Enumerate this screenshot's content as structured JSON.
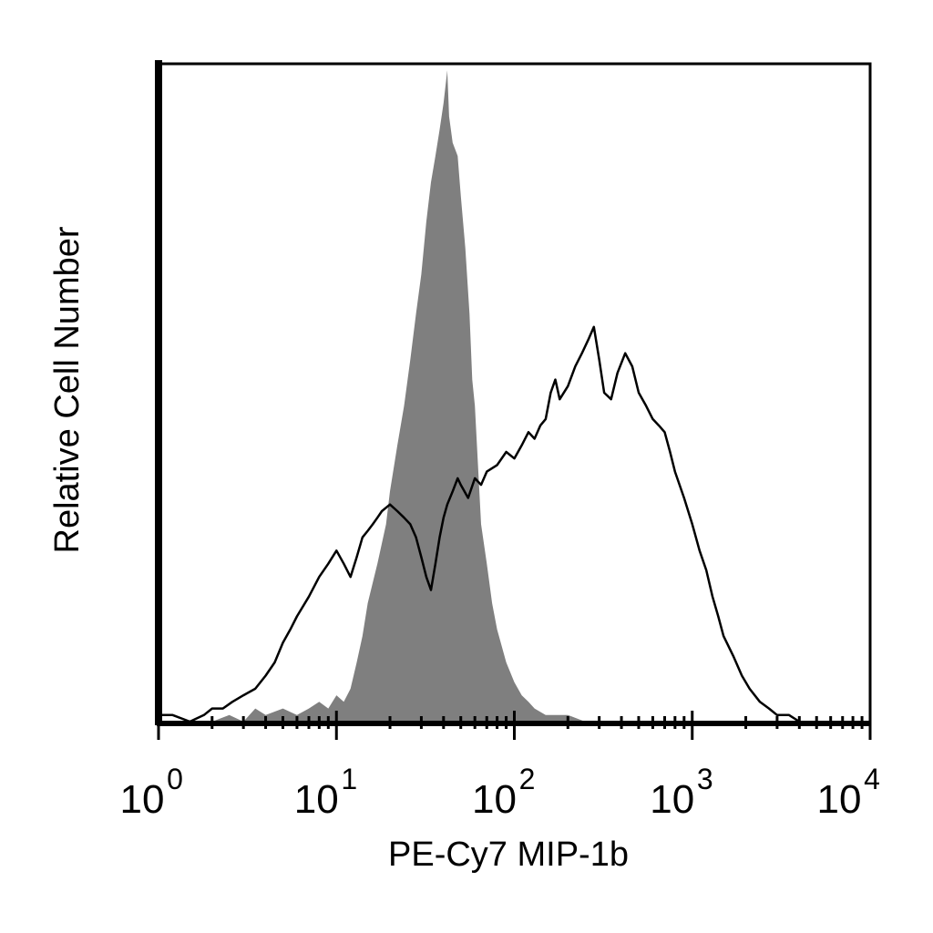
{
  "chart_data": {
    "type": "area",
    "xlabel": "PE-Cy7 MIP-1b",
    "ylabel": "Relative Cell Number",
    "x_scale": "log",
    "xlim": [
      1,
      10000
    ],
    "ylim": [
      0,
      100
    ],
    "x_ticks": [
      {
        "base": "10",
        "exp": "0",
        "value": 1
      },
      {
        "base": "10",
        "exp": "1",
        "value": 10
      },
      {
        "base": "10",
        "exp": "2",
        "value": 100
      },
      {
        "base": "10",
        "exp": "3",
        "value": 1000
      },
      {
        "base": "10",
        "exp": "4",
        "value": 10000
      }
    ],
    "grid": false,
    "legend": "none",
    "series": [
      {
        "style": "filled",
        "color": "#7f7f7f",
        "points": [
          [
            1.0,
            0
          ],
          [
            2.0,
            0
          ],
          [
            2.5,
            1
          ],
          [
            3.0,
            0
          ],
          [
            3.5,
            2
          ],
          [
            4.0,
            1
          ],
          [
            5.0,
            2
          ],
          [
            6.0,
            1
          ],
          [
            7.0,
            2
          ],
          [
            8.0,
            3
          ],
          [
            9.0,
            2
          ],
          [
            10.0,
            4
          ],
          [
            11.0,
            3
          ],
          [
            12.0,
            5
          ],
          [
            13.0,
            9
          ],
          [
            14.0,
            13
          ],
          [
            15.0,
            18
          ],
          [
            17.0,
            24
          ],
          [
            19.0,
            30
          ],
          [
            20.0,
            35
          ],
          [
            22.0,
            42
          ],
          [
            24.0,
            48
          ],
          [
            26.0,
            55
          ],
          [
            28.0,
            62
          ],
          [
            30.0,
            68
          ],
          [
            32.0,
            76
          ],
          [
            34.0,
            82
          ],
          [
            36.0,
            86
          ],
          [
            38.0,
            90
          ],
          [
            40.0,
            94
          ],
          [
            42.0,
            99
          ],
          [
            43.0,
            92
          ],
          [
            45.0,
            88
          ],
          [
            48.0,
            86
          ],
          [
            50.0,
            80
          ],
          [
            53.0,
            72
          ],
          [
            56.0,
            62
          ],
          [
            58.0,
            52
          ],
          [
            60.0,
            48
          ],
          [
            65.0,
            30
          ],
          [
            70.0,
            24
          ],
          [
            75.0,
            18
          ],
          [
            80.0,
            14
          ],
          [
            90.0,
            9
          ],
          [
            100.0,
            6
          ],
          [
            110.0,
            4
          ],
          [
            120.0,
            3
          ],
          [
            130.0,
            2
          ],
          [
            150.0,
            1
          ],
          [
            200.0,
            1
          ],
          [
            250.0,
            0
          ]
        ]
      },
      {
        "style": "outline",
        "color": "#000000",
        "points": [
          [
            1.0,
            1
          ],
          [
            1.2,
            1
          ],
          [
            1.5,
            0
          ],
          [
            1.8,
            1
          ],
          [
            2.0,
            2
          ],
          [
            2.3,
            2
          ],
          [
            2.6,
            3
          ],
          [
            3.0,
            4
          ],
          [
            3.5,
            5
          ],
          [
            4.0,
            7
          ],
          [
            4.5,
            9
          ],
          [
            5.0,
            12
          ],
          [
            5.5,
            14
          ],
          [
            6.0,
            16
          ],
          [
            7.0,
            19
          ],
          [
            8.0,
            22
          ],
          [
            9.0,
            24
          ],
          [
            10.0,
            26
          ],
          [
            11.0,
            24
          ],
          [
            12.0,
            22
          ],
          [
            13.0,
            25
          ],
          [
            14.0,
            28
          ],
          [
            15.0,
            29
          ],
          [
            16.0,
            30
          ],
          [
            17.0,
            31
          ],
          [
            18.0,
            32
          ],
          [
            20.0,
            33
          ],
          [
            22.0,
            32
          ],
          [
            24.0,
            31
          ],
          [
            26.0,
            30
          ],
          [
            28.0,
            28
          ],
          [
            30.0,
            25
          ],
          [
            32.0,
            22
          ],
          [
            34.0,
            20
          ],
          [
            36.0,
            24
          ],
          [
            38.0,
            28
          ],
          [
            40.0,
            31
          ],
          [
            42.0,
            33
          ],
          [
            45.0,
            35
          ],
          [
            48.0,
            37
          ],
          [
            50.0,
            36
          ],
          [
            55.0,
            34
          ],
          [
            60.0,
            37
          ],
          [
            65.0,
            36
          ],
          [
            70.0,
            38
          ],
          [
            80.0,
            39
          ],
          [
            90.0,
            41
          ],
          [
            100.0,
            40
          ],
          [
            110.0,
            42
          ],
          [
            120.0,
            44
          ],
          [
            130.0,
            43
          ],
          [
            140.0,
            45
          ],
          [
            150.0,
            46
          ],
          [
            160.0,
            50
          ],
          [
            170.0,
            52
          ],
          [
            180.0,
            49
          ],
          [
            200.0,
            51
          ],
          [
            220.0,
            54
          ],
          [
            240.0,
            56
          ],
          [
            260.0,
            58
          ],
          [
            280.0,
            60
          ],
          [
            300.0,
            55
          ],
          [
            320.0,
            50
          ],
          [
            350.0,
            49
          ],
          [
            380.0,
            53
          ],
          [
            420.0,
            56
          ],
          [
            460.0,
            54
          ],
          [
            500.0,
            50
          ],
          [
            550.0,
            48
          ],
          [
            600.0,
            46
          ],
          [
            650.0,
            45
          ],
          [
            700.0,
            44
          ],
          [
            750.0,
            41
          ],
          [
            800.0,
            38
          ],
          [
            900.0,
            34
          ],
          [
            1000.0,
            30
          ],
          [
            1100.0,
            26
          ],
          [
            1200.0,
            23
          ],
          [
            1300.0,
            19
          ],
          [
            1400.0,
            16
          ],
          [
            1500.0,
            13
          ],
          [
            1700.0,
            10
          ],
          [
            1900.0,
            7
          ],
          [
            2100.0,
            5
          ],
          [
            2400.0,
            3
          ],
          [
            2700.0,
            2
          ],
          [
            3000.0,
            1
          ],
          [
            3500.0,
            1
          ],
          [
            4000.0,
            0
          ]
        ]
      }
    ]
  }
}
